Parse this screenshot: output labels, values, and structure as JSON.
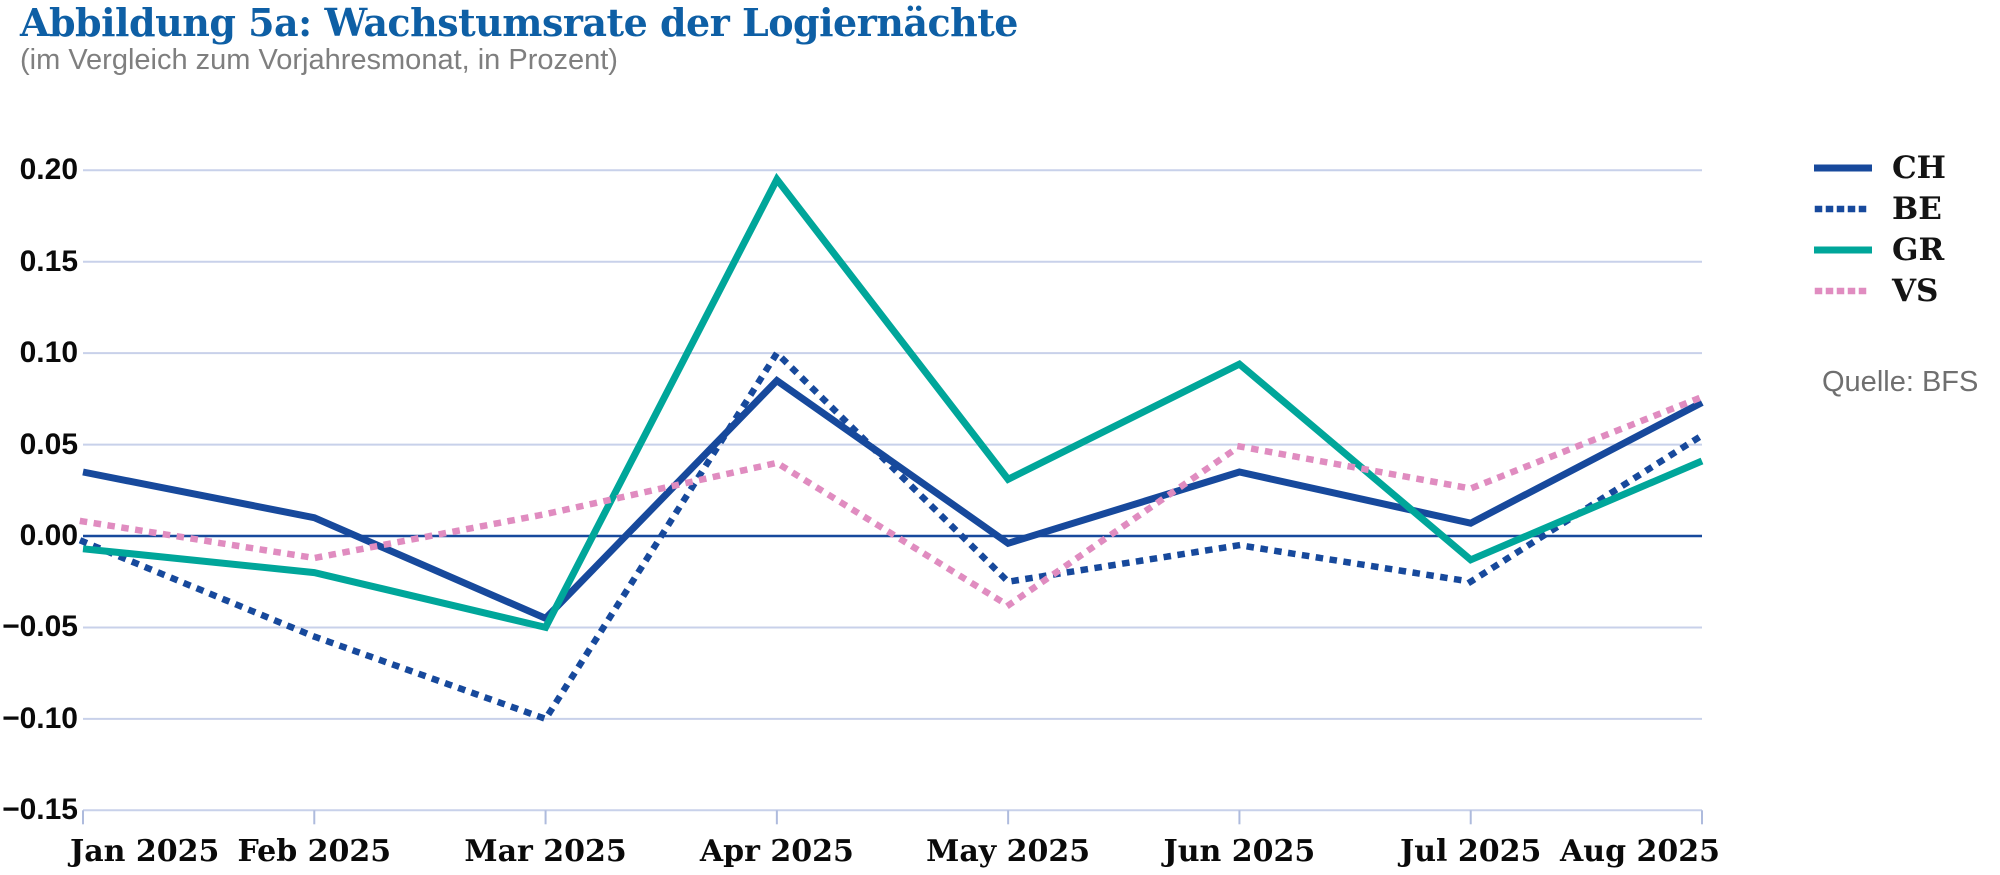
{
  "header": {
    "title": "Abbildung 5a: Wachstumsrate der Logiernächte",
    "subtitle": "(im Vergleich zum Vorjahresmonat, in Prozent)"
  },
  "source": {
    "label": "Quelle: BFS"
  },
  "colors": {
    "title_blue": "#0e5fa5",
    "subtitle_gray": "#7f7f7f",
    "source_gray": "#6f6f6f",
    "gridline": "#c8d1ea",
    "tick": "#aebbdd",
    "zero_line": "#17499c",
    "ch_be_blue": "#17499c",
    "gr_teal": "#00a69a",
    "vs_pink": "#e08cc0"
  },
  "chart_data": {
    "type": "line",
    "title": "Abbildung 5a: Wachstumsrate der Logiernächte",
    "subtitle": "(im Vergleich zum Vorjahresmonat, in Prozent)",
    "source": "Quelle: BFS",
    "categories": [
      "Jan 2025",
      "Feb 2025",
      "Mar 2025",
      "Apr 2025",
      "May 2025",
      "Jun 2025",
      "Jul 2025",
      "Aug 2025"
    ],
    "series": [
      {
        "name": "CH",
        "style": "solid",
        "color": "#17499c",
        "values": [
          0.035,
          0.01,
          -0.045,
          0.085,
          -0.004,
          0.035,
          0.007,
          0.073
        ]
      },
      {
        "name": "BE",
        "style": "dotted",
        "color": "#17499c",
        "values": [
          -0.003,
          -0.055,
          -0.1,
          0.1,
          -0.025,
          -0.005,
          -0.025,
          0.055
        ]
      },
      {
        "name": "GR",
        "style": "solid",
        "color": "#00a69a",
        "values": [
          -0.007,
          -0.02,
          -0.05,
          0.195,
          0.031,
          0.094,
          -0.013,
          0.041
        ]
      },
      {
        "name": "VS",
        "style": "dotted",
        "color": "#e08cc0",
        "values": [
          0.008,
          -0.012,
          0.012,
          0.04,
          -0.038,
          0.049,
          0.026,
          0.076
        ]
      }
    ],
    "y_ticks": [
      0.2,
      0.15,
      0.1,
      0.05,
      0.0,
      -0.05,
      -0.1,
      -0.15
    ],
    "y_tick_labels": [
      "0.20",
      "0.15",
      "0.10",
      "0.05",
      "0.00",
      "−0.05",
      "−0.10",
      "−0.15"
    ],
    "ylim": [
      -0.15,
      0.2
    ],
    "grid": true,
    "zero_line": true,
    "legend_position": "right"
  }
}
